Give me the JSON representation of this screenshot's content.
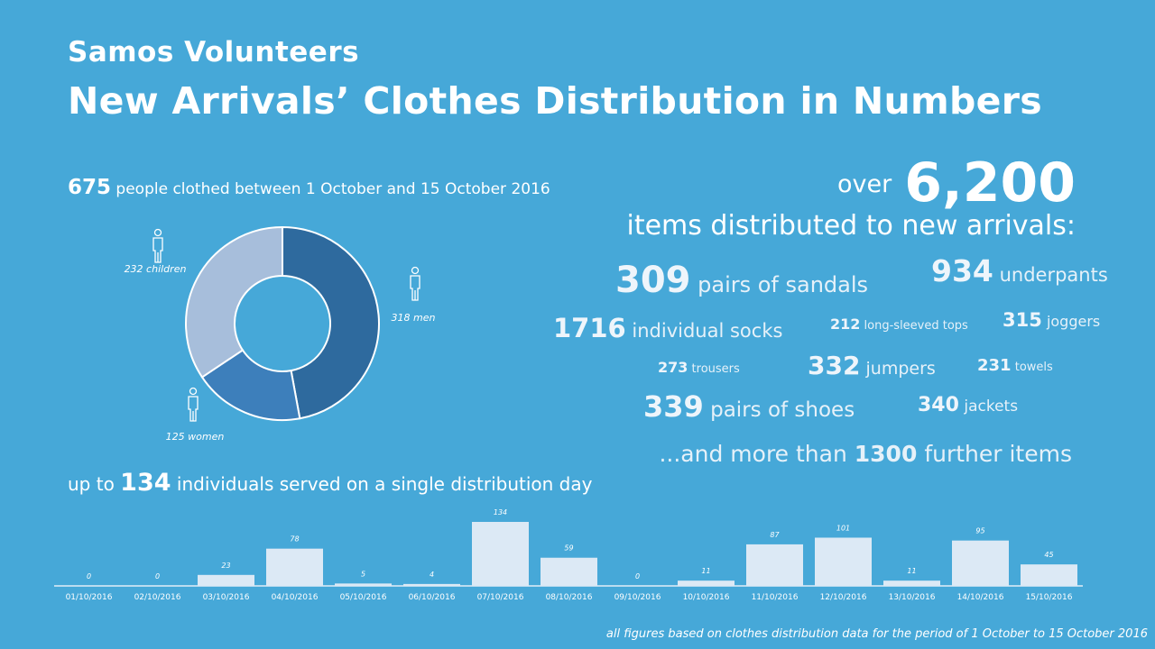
{
  "header": {
    "organization": "Samos Volunteers",
    "title": "New Arrivals’ Clothes Distribution in Numbers"
  },
  "people": {
    "count": "675",
    "text": "people clothed between 1 October and 15 October 2016"
  },
  "totals": {
    "prefix": "over",
    "number": "6,200",
    "subtitle": "items distributed to new arrivals:"
  },
  "items": [
    {
      "number": "309",
      "label": "pairs of sandals"
    },
    {
      "number": "934",
      "label": "underpants"
    },
    {
      "number": "1716",
      "label": "individual socks"
    },
    {
      "number": "212",
      "label": "long-sleeved tops"
    },
    {
      "number": "315",
      "label": "joggers"
    },
    {
      "number": "273",
      "label": "trousers"
    },
    {
      "number": "332",
      "label": "jumpers"
    },
    {
      "number": "231",
      "label": "towels"
    },
    {
      "number": "339",
      "label": "pairs of shoes"
    },
    {
      "number": "340",
      "label": "jackets"
    }
  ],
  "more": {
    "prefix": "...and more than",
    "number": "1300",
    "suffix": "further items"
  },
  "served": {
    "prefix": "up to",
    "number": "134",
    "suffix": "individuals served on a single distribution day"
  },
  "footnote": "all figures based on clothes distribution data for the period of 1 October to 15 October 2016",
  "colors": {
    "background": "#46a8d8",
    "men": "#2e6a9e",
    "women": "#3d7fbb",
    "children": "#a7bedb",
    "bars": "#dce9f5"
  },
  "icons": [
    "person-icon"
  ],
  "chart_data": [
    {
      "type": "pie",
      "variant": "donut",
      "categories": [
        "men",
        "women",
        "children"
      ],
      "values": [
        318,
        125,
        232
      ],
      "labels": [
        "318 men",
        "125 women",
        "232 children"
      ]
    },
    {
      "type": "bar",
      "categories": [
        "01/10/2016",
        "02/10/2016",
        "03/10/2016",
        "04/10/2016",
        "05/10/2016",
        "06/10/2016",
        "07/10/2016",
        "08/10/2016",
        "09/10/2016",
        "10/10/2016",
        "11/10/2016",
        "12/10/2016",
        "13/10/2016",
        "14/10/2016",
        "15/10/2016"
      ],
      "values": [
        0,
        0,
        23,
        78,
        5,
        4,
        134,
        59,
        0,
        11,
        87,
        101,
        11,
        95,
        45
      ],
      "ylim": [
        0,
        134
      ]
    }
  ]
}
